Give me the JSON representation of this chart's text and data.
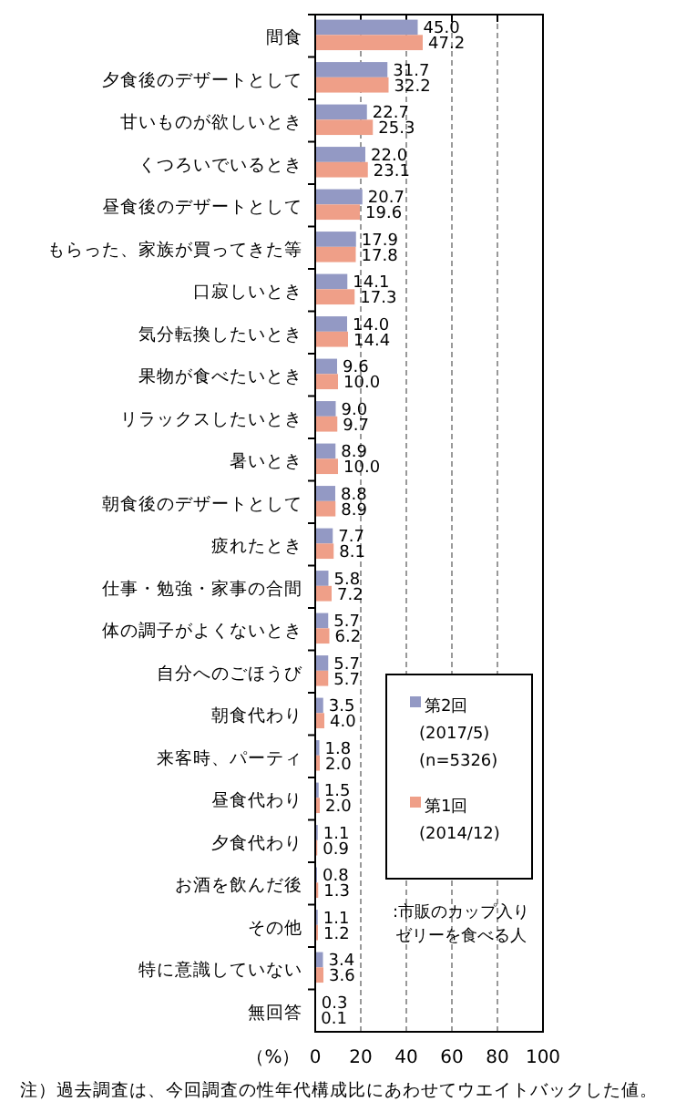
{
  "chart_data": {
    "type": "bar",
    "orientation": "horizontal",
    "xlabel": "（%）",
    "xlim": [
      0,
      100
    ],
    "xticks": [
      0,
      20,
      40,
      60,
      80,
      100
    ],
    "grid": "x",
    "legend": "right",
    "categories": [
      "間食",
      "夕食後のデザートとして",
      "甘いものが欲しいとき",
      "くつろいでいるとき",
      "昼食後のデザートとして",
      "もらった、家族が買ってきた等",
      "口寂しいとき",
      "気分転換したいとき",
      "果物が食べたいとき",
      "リラックスしたいとき",
      "暑いとき",
      "朝食後のデザートとして",
      "疲れたとき",
      "仕事・勉強・家事の合間",
      "体の調子がよくないとき",
      "自分へのごほうび",
      "朝食代わり",
      "来客時、パーティ",
      "昼食代わり",
      "夕食代わり",
      "お酒を飲んだ後",
      "その他",
      "特に意識していない",
      "無回答"
    ],
    "series": [
      {
        "name": "第2回\n(2017/5)\n(n=5326)",
        "color": "#9399c4",
        "values": [
          45.0,
          31.7,
          22.7,
          22.0,
          20.7,
          17.9,
          14.1,
          14.0,
          9.6,
          9.0,
          8.9,
          8.8,
          7.7,
          5.8,
          5.7,
          5.7,
          3.5,
          1.8,
          1.5,
          1.1,
          0.8,
          1.1,
          3.4,
          0.3
        ],
        "value_labels": [
          "45.0",
          "31.7",
          "22.7",
          "22.0",
          "20.7",
          "17.9",
          "14.1",
          "14.0",
          "9.6",
          "9.0",
          "8.9",
          "8.8",
          "7.7",
          "5.8",
          "5.7",
          "5.7",
          "3.5",
          "1.8",
          "1.5",
          "1.1",
          "0.8",
          "1.1",
          "3.4",
          "0.3"
        ]
      },
      {
        "name": "第1回\n(2014/12)",
        "color": "#ef9f88",
        "values": [
          47.2,
          32.2,
          25.3,
          23.1,
          19.6,
          17.8,
          17.3,
          14.4,
          10.0,
          9.7,
          10.0,
          8.9,
          8.1,
          7.2,
          6.2,
          5.7,
          4.0,
          2.0,
          2.0,
          0.9,
          1.3,
          1.2,
          3.6,
          0.1
        ],
        "value_labels": [
          "47.2",
          "32.2",
          "25.3",
          "23.1",
          "19.6",
          "17.8",
          "17.3",
          "14.4",
          "10.0",
          "9.7",
          "10.0",
          "8.9",
          "8.1",
          "7.2",
          "6.2",
          "5.7",
          "4.0",
          "2.0",
          "2.0",
          "0.9",
          "1.3",
          "1.2",
          "3.6",
          "0.1"
        ]
      }
    ],
    "annotations": [
      ":市販のカップ入り",
      "ゼリーを食べる人",
      "注）過去調査は、今回調査の性年代構成比にあわせてウエイトバックした値。"
    ]
  }
}
